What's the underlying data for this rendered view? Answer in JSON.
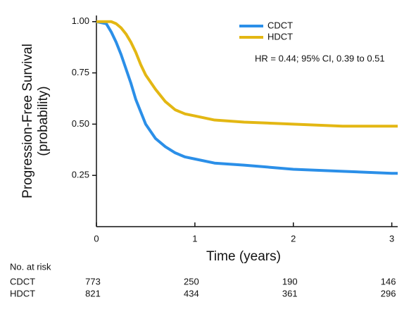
{
  "chart_data": {
    "type": "line",
    "x_label": "Time (years)",
    "y_label": [
      "Progression-Free Survival",
      "(probability)"
    ],
    "annotation": "HR = 0.44; 95% CI, 0.39 to 0.51",
    "x": [
      0,
      0.1,
      0.15,
      0.2,
      0.25,
      0.3,
      0.35,
      0.4,
      0.45,
      0.5,
      0.6,
      0.7,
      0.8,
      0.9,
      1.0,
      1.2,
      1.5,
      2.0,
      2.5,
      3.0,
      3.06
    ],
    "series": [
      {
        "name": "CDCT",
        "color": "#2b8fe8",
        "values": [
          1.0,
          0.99,
          0.95,
          0.9,
          0.84,
          0.77,
          0.7,
          0.62,
          0.56,
          0.5,
          0.43,
          0.39,
          0.36,
          0.34,
          0.33,
          0.31,
          0.3,
          0.28,
          0.27,
          0.26,
          0.26
        ]
      },
      {
        "name": "HDCT",
        "color": "#e3b713",
        "values": [
          1.0,
          1.0,
          1.0,
          0.99,
          0.97,
          0.94,
          0.9,
          0.85,
          0.79,
          0.74,
          0.67,
          0.61,
          0.57,
          0.55,
          0.54,
          0.52,
          0.51,
          0.5,
          0.49,
          0.49,
          0.49
        ]
      }
    ],
    "xlim": [
      0,
      3.06
    ],
    "ylim": [
      0,
      1.03
    ],
    "xticks": [
      0,
      1,
      2,
      3
    ],
    "yticks": [
      {
        "value": 0.25,
        "label": "0.25"
      },
      {
        "value": 0.5,
        "label": "0.50"
      },
      {
        "value": 0.75,
        "label": "0.75"
      },
      {
        "value": 1.0,
        "label": "1.00"
      }
    ],
    "legend": "top-right",
    "risk_table": {
      "title": "No. at risk",
      "rows": [
        {
          "name": "CDCT",
          "values": [
            773,
            250,
            190,
            146
          ]
        },
        {
          "name": "HDCT",
          "values": [
            821,
            434,
            361,
            296
          ]
        }
      ]
    }
  }
}
